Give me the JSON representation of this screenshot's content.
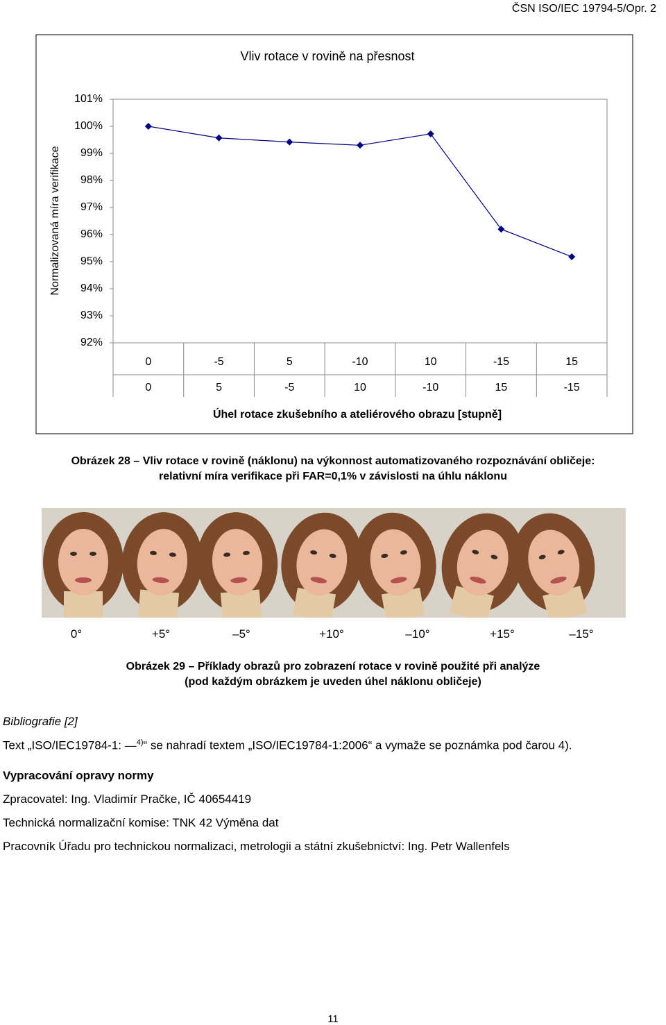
{
  "page_header": "ČSN ISO/IEC 19794-5/Opr. 2",
  "chart_data": {
    "type": "line",
    "title": "Vliv rotace v rovině na přesnost",
    "y_label": "Normalizovaná míra verifikace",
    "x_label": "Úhel rotace zkušebního a ateliérového obrazu [stupně]",
    "categories": [
      "0",
      "-5",
      "5",
      "-10",
      "10",
      "-15",
      "15"
    ],
    "categories_row2": [
      "0",
      "5",
      "-5",
      "10",
      "-10",
      "15",
      "-15"
    ],
    "series": [
      {
        "color": "#000080",
        "values": [
          100.0,
          99.57,
          99.42,
          99.3,
          99.72,
          96.2,
          95.18
        ]
      }
    ],
    "ylim": [
      92,
      101
    ],
    "yticks": [
      {
        "value": 92,
        "label": "92%"
      },
      {
        "value": 93,
        "label": "93%"
      },
      {
        "value": 94,
        "label": "94%"
      },
      {
        "value": 95,
        "label": "95%"
      },
      {
        "value": 96,
        "label": "96%"
      },
      {
        "value": 97,
        "label": "97%"
      },
      {
        "value": 98,
        "label": "98%"
      },
      {
        "value": 99,
        "label": "99%"
      },
      {
        "value": 100,
        "label": "100%"
      },
      {
        "value": 101,
        "label": "101%"
      }
    ]
  },
  "figure28_caption": [
    "Obrázek 28 – Vliv rotace v rovině (náklonu) na výkonnost automatizovaného rozpoznávání obličeje:",
    "relativní míra verifikace při FAR=0,1% v závislosti na úhlu náklonu"
  ],
  "figure29_angles": [
    "0°",
    "+5°",
    "–5°",
    "+10°",
    "–10°",
    "+15°",
    "–15°"
  ],
  "figure29_caption": [
    "Obrázek 29 – Příklady obrazů pro zobrazení rotace v rovině použité při analýze",
    "(pod každým obrázkem je uveden úhel náklonu obličeje)"
  ],
  "bibliography": "Bibliografie [2]",
  "amendment_text": [
    "Text „ISO/IEC19784-1: —",
    "4)",
    "“ se nahradí textem „ISO/IEC19784-1:2006“ a vymaže se poznámka pod čarou 4)."
  ],
  "section_title": "Vypracování opravy normy",
  "lines": [
    "Zpracovatel: Ing. Vladimír Pračke, IČ 40654419",
    "Technická normalizační komise: TNK 42 Výměna dat",
    "Pracovník Úřadu pro technickou normalizaci, metrologii a státní zkušebnictví: Ing. Petr Wallenfels"
  ],
  "page_number": "11"
}
